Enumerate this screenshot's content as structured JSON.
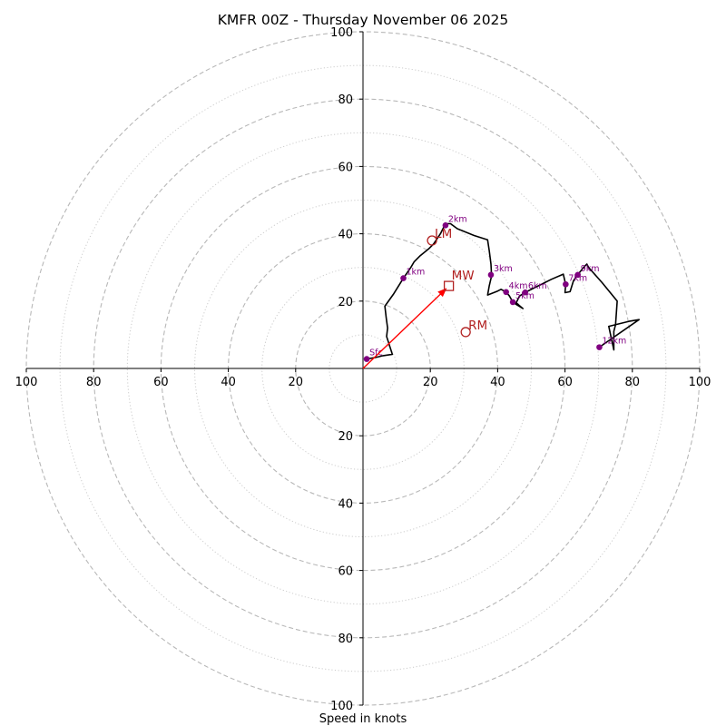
{
  "chart_data": {
    "type": "line",
    "chart_kind": "hodograph",
    "title": "KMFR 00Z - Thursday November 06 2025",
    "xlabel": "Speed in knots",
    "ylabel": "",
    "xlim": [
      -100,
      100
    ],
    "ylim": [
      -100,
      100
    ],
    "rings_major": [
      20,
      40,
      60,
      80,
      100
    ],
    "rings_minor": [
      10,
      30,
      50,
      70,
      90
    ],
    "x_tick_labels": [
      {
        "v": -100,
        "label": "100"
      },
      {
        "v": -80,
        "label": "80"
      },
      {
        "v": -60,
        "label": "60"
      },
      {
        "v": -40,
        "label": "40"
      },
      {
        "v": -20,
        "label": "20"
      },
      {
        "v": 20,
        "label": "20"
      },
      {
        "v": 40,
        "label": "40"
      },
      {
        "v": 60,
        "label": "60"
      },
      {
        "v": 80,
        "label": "80"
      },
      {
        "v": 100,
        "label": "100"
      }
    ],
    "y_tick_labels": [
      {
        "v": 100,
        "label": "100"
      },
      {
        "v": 80,
        "label": "80"
      },
      {
        "v": 60,
        "label": "60"
      },
      {
        "v": 40,
        "label": "40"
      },
      {
        "v": 20,
        "label": "20"
      },
      {
        "v": -20,
        "label": "20"
      },
      {
        "v": -40,
        "label": "40"
      },
      {
        "v": -60,
        "label": "60"
      },
      {
        "v": -80,
        "label": "80"
      },
      {
        "v": -100,
        "label": "100"
      }
    ],
    "series": [
      {
        "name": "hodograph",
        "color": "#000000",
        "points": [
          [
            1.1,
            2.8
          ],
          [
            3.5,
            3.2
          ],
          [
            6.0,
            3.8
          ],
          [
            8.7,
            4.2
          ],
          [
            7.5,
            8.0
          ],
          [
            7.0,
            9.5
          ],
          [
            7.3,
            12.0
          ],
          [
            6.9,
            15.0
          ],
          [
            6.5,
            18.5
          ],
          [
            9.0,
            22.0
          ],
          [
            12.0,
            26.8
          ],
          [
            14.2,
            30.0
          ],
          [
            15.2,
            31.7
          ],
          [
            17.0,
            33.5
          ],
          [
            19.5,
            35.5
          ],
          [
            21.0,
            37.0
          ],
          [
            23.0,
            40.0
          ],
          [
            24.5,
            43.0
          ],
          [
            26.0,
            43.0
          ],
          [
            28.0,
            41.5
          ],
          [
            33.0,
            39.5
          ],
          [
            37.0,
            38.2
          ],
          [
            37.5,
            35.0
          ],
          [
            38.0,
            31.0
          ],
          [
            38.2,
            27.5
          ],
          [
            37.5,
            24.5
          ],
          [
            37.0,
            21.8
          ],
          [
            40.0,
            23.0
          ],
          [
            41.0,
            23.5
          ],
          [
            42.5,
            22.7
          ],
          [
            43.5,
            21.5
          ],
          [
            44.5,
            19.7
          ],
          [
            45.5,
            19.0
          ],
          [
            47.5,
            17.8
          ],
          [
            45.5,
            19.5
          ],
          [
            46.5,
            21.5
          ],
          [
            48.2,
            22.6
          ],
          [
            52.0,
            24.5
          ],
          [
            56.0,
            26.5
          ],
          [
            59.5,
            28.0
          ],
          [
            60.2,
            25.0
          ],
          [
            60.0,
            22.5
          ],
          [
            61.5,
            22.8
          ],
          [
            62.5,
            26.0
          ],
          [
            63.5,
            27.5
          ],
          [
            65.5,
            30.0
          ],
          [
            66.5,
            31.0
          ],
          [
            67.0,
            30.0
          ],
          [
            71.0,
            25.5
          ],
          [
            75.5,
            20.0
          ],
          [
            75.0,
            13.0
          ],
          [
            74.5,
            11.0
          ],
          [
            74.5,
            5.5
          ],
          [
            73.0,
            12.5
          ],
          [
            79.0,
            14.0
          ],
          [
            82.0,
            14.5
          ],
          [
            70.2,
            6.3
          ]
        ]
      }
    ],
    "height_markers": [
      {
        "label": "Sfc",
        "u": 1.1,
        "v": 2.8
      },
      {
        "label": "1km",
        "u": 12.0,
        "v": 26.8
      },
      {
        "label": "2km",
        "u": 24.5,
        "v": 42.5
      },
      {
        "label": "3km",
        "u": 38.0,
        "v": 27.8
      },
      {
        "label": "4km",
        "u": 42.5,
        "v": 22.7
      },
      {
        "label": "5km",
        "u": 44.5,
        "v": 19.7
      },
      {
        "label": "6km",
        "u": 48.2,
        "v": 22.6
      },
      {
        "label": "7km",
        "u": 60.2,
        "v": 25.0
      },
      {
        "label": "9km",
        "u": 63.8,
        "v": 27.8
      },
      {
        "label": "12km",
        "u": 70.2,
        "v": 6.3
      }
    ],
    "storm_motion": {
      "color": "#b22222",
      "arrow_color": "#ff0000",
      "mean_wind": {
        "label": "MW",
        "u": 25.5,
        "v": 24.5
      },
      "left_mover": {
        "label": "LM",
        "u": 20.5,
        "v": 38.0
      },
      "right_mover": {
        "label": "RM",
        "u": 30.5,
        "v": 10.8
      }
    }
  }
}
